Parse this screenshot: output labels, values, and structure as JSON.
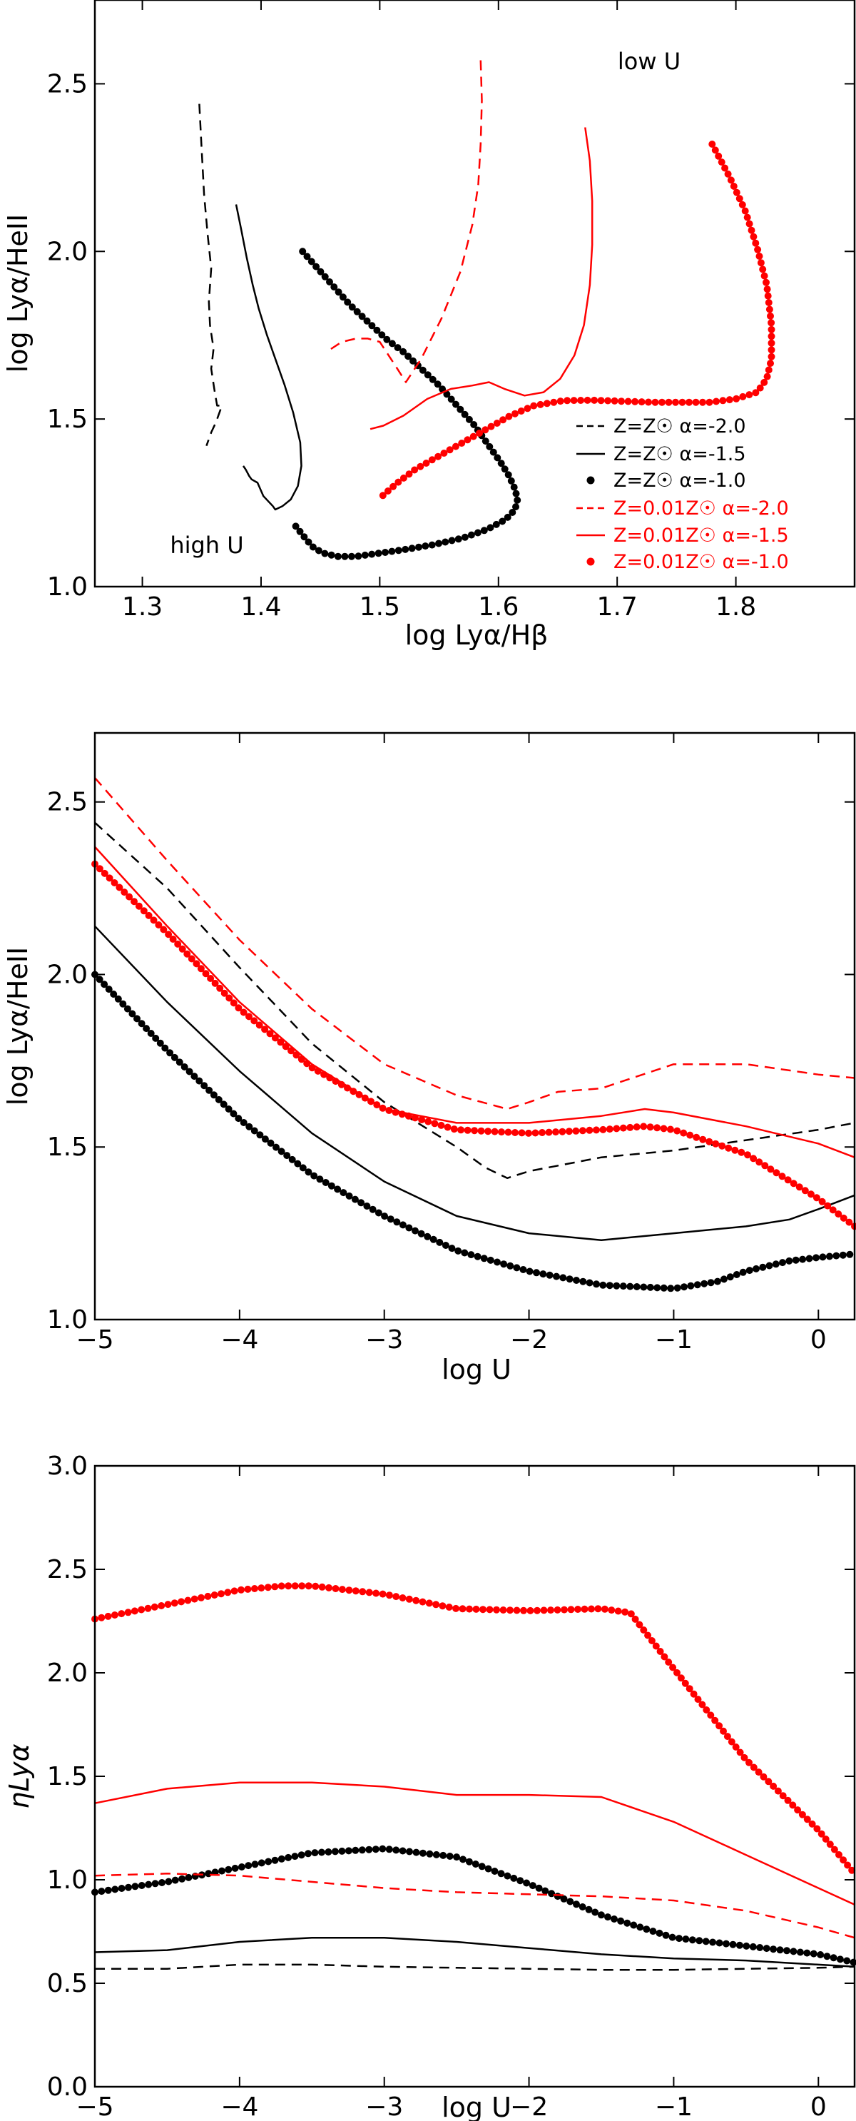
{
  "colors": {
    "black": "#000000",
    "red": "#ff0000"
  },
  "chart_data": [
    {
      "type": "line",
      "id": "top",
      "title": "",
      "xlabel": "log Lyα/Hβ",
      "ylabel": "log Lyα/HeII",
      "xlim": [
        1.26,
        1.9
      ],
      "ylim": [
        1.0,
        2.75
      ],
      "xticks": [
        1.3,
        1.4,
        1.5,
        1.6,
        1.7,
        1.8
      ],
      "yticks": [
        1.0,
        1.5,
        2.0,
        2.5
      ],
      "xtick_labels": [
        "1.3",
        "1.4",
        "1.5",
        "1.6",
        "1.7",
        "1.8"
      ],
      "ytick_labels": [
        "1.0",
        "1.5",
        "2.0",
        "2.5"
      ],
      "annotations": [
        {
          "text": "low U",
          "x": 1.725,
          "y": 2.53
        },
        {
          "text": "high U",
          "x": 1.325,
          "y": 1.11
        }
      ],
      "legend": {
        "position": "bottom-right",
        "entries": [
          {
            "label": "Z=Z☉ α=-2.0",
            "series": 0
          },
          {
            "label": "Z=Z☉ α=-1.5",
            "series": 1
          },
          {
            "label": "Z=Z☉ α=-1.0",
            "series": 2
          },
          {
            "label": "Z=0.01Z☉ α=-2.0",
            "series": 3
          },
          {
            "label": "Z=0.01Z☉ α=-1.5",
            "series": 4
          },
          {
            "label": "Z=0.01Z☉ α=-1.0",
            "series": 5
          }
        ]
      },
      "series": [
        {
          "name": "Z=Z☉ α=-2.0",
          "color": "#000000",
          "style": "dashed",
          "x": [
            1.348,
            1.35,
            1.352,
            1.355,
            1.358,
            1.356,
            1.357,
            1.36,
            1.358,
            1.361,
            1.363,
            1.367,
            1.362,
            1.358,
            1.354
          ],
          "y": [
            2.44,
            2.3,
            2.17,
            2.05,
            1.95,
            1.85,
            1.78,
            1.71,
            1.65,
            1.58,
            1.54,
            1.54,
            1.49,
            1.46,
            1.42
          ]
        },
        {
          "name": "Z=Z☉ α=-1.5",
          "color": "#000000",
          "style": "solid",
          "x": [
            1.379,
            1.383,
            1.388,
            1.393,
            1.398,
            1.405,
            1.412,
            1.42,
            1.427,
            1.433,
            1.434,
            1.431,
            1.425,
            1.418,
            1.412,
            1.41,
            1.402,
            1.397,
            1.392,
            1.39,
            1.387,
            1.385
          ],
          "y": [
            2.14,
            2.07,
            1.98,
            1.9,
            1.83,
            1.75,
            1.68,
            1.6,
            1.52,
            1.43,
            1.36,
            1.3,
            1.26,
            1.24,
            1.23,
            1.24,
            1.27,
            1.31,
            1.32,
            1.33,
            1.35,
            1.36
          ]
        },
        {
          "name": "Z=Z☉ α=-1.0",
          "color": "#000000",
          "style": "dotted",
          "x": [
            1.435,
            1.445,
            1.46,
            1.475,
            1.49,
            1.505,
            1.52,
            1.535,
            1.55,
            1.565,
            1.58,
            1.592,
            1.602,
            1.609,
            1.614,
            1.616,
            1.614,
            1.606,
            1.59,
            1.57,
            1.545,
            1.52,
            1.5,
            1.48,
            1.465,
            1.452,
            1.443,
            1.436,
            1.427
          ],
          "y": [
            2.0,
            1.96,
            1.9,
            1.84,
            1.79,
            1.74,
            1.7,
            1.65,
            1.6,
            1.54,
            1.48,
            1.42,
            1.37,
            1.33,
            1.29,
            1.26,
            1.23,
            1.2,
            1.17,
            1.145,
            1.125,
            1.11,
            1.1,
            1.09,
            1.09,
            1.1,
            1.12,
            1.15,
            1.19
          ]
        },
        {
          "name": "Z=0.01Z☉ α=-2.0",
          "color": "#ff0000",
          "style": "dashed",
          "x": [
            1.585,
            1.586,
            1.585,
            1.583,
            1.578,
            1.568,
            1.552,
            1.535,
            1.522,
            1.513,
            1.5,
            1.49,
            1.48,
            1.468,
            1.455
          ],
          "y": [
            2.57,
            2.45,
            2.32,
            2.2,
            2.08,
            1.94,
            1.8,
            1.68,
            1.61,
            1.66,
            1.73,
            1.74,
            1.74,
            1.73,
            1.7
          ]
        },
        {
          "name": "Z=0.01Z☉ α=-1.5",
          "color": "#ff0000",
          "style": "solid",
          "x": [
            1.673,
            1.677,
            1.679,
            1.679,
            1.677,
            1.672,
            1.664,
            1.652,
            1.638,
            1.622,
            1.605,
            1.592,
            1.578,
            1.56,
            1.54,
            1.52,
            1.503,
            1.492
          ],
          "y": [
            2.37,
            2.27,
            2.15,
            2.02,
            1.9,
            1.78,
            1.69,
            1.62,
            1.58,
            1.57,
            1.59,
            1.61,
            1.6,
            1.59,
            1.56,
            1.51,
            1.48,
            1.47
          ]
        },
        {
          "name": "Z=0.01Z☉ α=-1.0",
          "color": "#ff0000",
          "style": "dotted",
          "x": [
            1.78,
            1.795,
            1.808,
            1.818,
            1.826,
            1.83,
            1.83,
            1.826,
            1.818,
            1.8,
            1.778,
            1.755,
            1.73,
            1.705,
            1.68,
            1.655,
            1.63,
            1.61,
            1.59,
            1.57,
            1.55,
            1.53,
            1.515,
            1.502
          ],
          "y": [
            2.32,
            2.22,
            2.12,
            2.01,
            1.9,
            1.78,
            1.68,
            1.62,
            1.58,
            1.56,
            1.55,
            1.55,
            1.55,
            1.553,
            1.556,
            1.555,
            1.54,
            1.51,
            1.47,
            1.43,
            1.39,
            1.35,
            1.31,
            1.27
          ]
        }
      ]
    },
    {
      "type": "line",
      "id": "middle",
      "title": "",
      "xlabel": "log U",
      "ylabel": "log Lyα/HeII",
      "xlim": [
        -5.0,
        0.25
      ],
      "ylim": [
        1.0,
        2.7
      ],
      "xticks": [
        -5,
        -4,
        -3,
        -2,
        -1,
        0
      ],
      "yticks": [
        1.0,
        1.5,
        2.0,
        2.5
      ],
      "xtick_labels": [
        "−5",
        "−4",
        "−3",
        "−2",
        "−1",
        "0"
      ],
      "ytick_labels": [
        "1.0",
        "1.5",
        "2.0",
        "2.5"
      ],
      "series": [
        {
          "name": "Z=Z☉ α=-2.0",
          "color": "#000000",
          "style": "dashed",
          "x": [
            -5.0,
            -4.5,
            -4.0,
            -3.5,
            -3.0,
            -2.5,
            -2.3,
            -2.15,
            -2.0,
            -1.5,
            -1.0,
            -0.5,
            0.0,
            0.25
          ],
          "y": [
            2.44,
            2.25,
            2.02,
            1.8,
            1.63,
            1.5,
            1.44,
            1.41,
            1.43,
            1.47,
            1.49,
            1.52,
            1.55,
            1.57
          ]
        },
        {
          "name": "Z=Z☉ α=-1.5",
          "color": "#000000",
          "style": "solid",
          "x": [
            -5.0,
            -4.5,
            -4.0,
            -3.5,
            -3.0,
            -2.5,
            -2.0,
            -1.5,
            -1.0,
            -0.5,
            -0.2,
            0.0,
            0.25
          ],
          "y": [
            2.14,
            1.92,
            1.72,
            1.54,
            1.4,
            1.3,
            1.25,
            1.23,
            1.25,
            1.27,
            1.29,
            1.32,
            1.36
          ]
        },
        {
          "name": "Z=Z☉ α=-1.0",
          "color": "#000000",
          "style": "dotted",
          "x": [
            -5.0,
            -4.5,
            -4.0,
            -3.5,
            -3.0,
            -2.5,
            -2.0,
            -1.5,
            -1.0,
            -0.7,
            -0.5,
            -0.2,
            0.0,
            0.25
          ],
          "y": [
            2.0,
            1.78,
            1.58,
            1.42,
            1.3,
            1.2,
            1.14,
            1.1,
            1.09,
            1.11,
            1.14,
            1.17,
            1.18,
            1.19
          ]
        },
        {
          "name": "Z=0.01Z☉ α=-2.0",
          "color": "#ff0000",
          "style": "dashed",
          "x": [
            -5.0,
            -4.5,
            -4.0,
            -3.5,
            -3.0,
            -2.5,
            -2.15,
            -2.0,
            -1.8,
            -1.5,
            -1.0,
            -0.5,
            0.0,
            0.25
          ],
          "y": [
            2.57,
            2.33,
            2.1,
            1.9,
            1.74,
            1.65,
            1.61,
            1.63,
            1.66,
            1.67,
            1.74,
            1.74,
            1.71,
            1.7
          ]
        },
        {
          "name": "Z=0.01Z☉ α=-1.5",
          "color": "#ff0000",
          "style": "solid",
          "x": [
            -5.0,
            -4.5,
            -4.0,
            -3.5,
            -3.0,
            -2.5,
            -2.0,
            -1.5,
            -1.2,
            -1.0,
            -0.5,
            0.0,
            0.25
          ],
          "y": [
            2.37,
            2.14,
            1.92,
            1.74,
            1.61,
            1.57,
            1.57,
            1.59,
            1.61,
            1.6,
            1.56,
            1.51,
            1.47
          ]
        },
        {
          "name": "Z=0.01Z☉ α=-1.0",
          "color": "#ff0000",
          "style": "dotted",
          "x": [
            -5.0,
            -4.5,
            -4.0,
            -3.5,
            -3.0,
            -2.5,
            -2.0,
            -1.5,
            -1.2,
            -1.0,
            -0.5,
            0.0,
            0.25
          ],
          "y": [
            2.32,
            2.12,
            1.9,
            1.73,
            1.61,
            1.55,
            1.54,
            1.55,
            1.56,
            1.55,
            1.48,
            1.35,
            1.27
          ]
        }
      ]
    },
    {
      "type": "line",
      "id": "bottom",
      "title": "",
      "xlabel": "log U",
      "ylabel": "ηLyα",
      "xlim": [
        -5.0,
        0.25
      ],
      "ylim": [
        0.0,
        3.0
      ],
      "xticks": [
        -5,
        -4,
        -3,
        -2,
        -1,
        0
      ],
      "yticks": [
        0.0,
        0.5,
        1.0,
        1.5,
        2.0,
        2.5,
        3.0
      ],
      "xtick_labels": [
        "−5",
        "−4",
        "−3",
        "−2",
        "−1",
        "0"
      ],
      "ytick_labels": [
        "0.0",
        "0.5",
        "1.0",
        "1.5",
        "2.0",
        "2.5",
        "3.0"
      ],
      "series": [
        {
          "name": "Z=Z☉ α=-2.0",
          "color": "#000000",
          "style": "dashed",
          "x": [
            -5.0,
            -4.5,
            -4.0,
            -3.5,
            -3.0,
            -2.5,
            -2.0,
            -1.5,
            -1.0,
            -0.5,
            0.0,
            0.25
          ],
          "y": [
            0.57,
            0.57,
            0.59,
            0.59,
            0.58,
            0.575,
            0.57,
            0.565,
            0.565,
            0.57,
            0.575,
            0.58
          ]
        },
        {
          "name": "Z=Z☉ α=-1.5",
          "color": "#000000",
          "style": "solid",
          "x": [
            -5.0,
            -4.5,
            -4.0,
            -3.5,
            -3.0,
            -2.5,
            -2.0,
            -1.5,
            -1.0,
            -0.5,
            0.0,
            0.25
          ],
          "y": [
            0.65,
            0.66,
            0.7,
            0.72,
            0.72,
            0.7,
            0.67,
            0.64,
            0.62,
            0.61,
            0.59,
            0.58
          ]
        },
        {
          "name": "Z=Z☉ α=-1.0",
          "color": "#000000",
          "style": "dotted",
          "x": [
            -5.0,
            -4.5,
            -4.0,
            -3.5,
            -3.0,
            -2.5,
            -2.0,
            -1.5,
            -1.0,
            -0.5,
            0.0,
            0.25
          ],
          "y": [
            0.94,
            0.99,
            1.06,
            1.13,
            1.15,
            1.11,
            0.98,
            0.83,
            0.72,
            0.68,
            0.64,
            0.6
          ]
        },
        {
          "name": "Z=0.01Z☉ α=-2.0",
          "color": "#ff0000",
          "style": "dashed",
          "x": [
            -5.0,
            -4.5,
            -4.0,
            -3.5,
            -3.0,
            -2.5,
            -2.0,
            -1.5,
            -1.0,
            -0.5,
            0.0,
            0.25
          ],
          "y": [
            1.02,
            1.03,
            1.02,
            0.99,
            0.96,
            0.94,
            0.93,
            0.92,
            0.9,
            0.85,
            0.77,
            0.72
          ]
        },
        {
          "name": "Z=0.01Z☉ α=-1.5",
          "color": "#ff0000",
          "style": "solid",
          "x": [
            -5.0,
            -4.5,
            -4.0,
            -3.5,
            -3.0,
            -2.5,
            -2.0,
            -1.5,
            -1.0,
            -0.5,
            0.0,
            0.25
          ],
          "y": [
            1.37,
            1.44,
            1.47,
            1.47,
            1.45,
            1.41,
            1.41,
            1.4,
            1.28,
            1.12,
            0.96,
            0.88
          ]
        },
        {
          "name": "Z=0.01Z☉ α=-1.0",
          "color": "#ff0000",
          "style": "dotted",
          "x": [
            -5.0,
            -4.5,
            -4.0,
            -3.7,
            -3.5,
            -3.0,
            -2.5,
            -2.0,
            -1.5,
            -1.3,
            -1.0,
            -0.5,
            0.0,
            0.25
          ],
          "y": [
            2.26,
            2.33,
            2.4,
            2.42,
            2.42,
            2.38,
            2.31,
            2.3,
            2.31,
            2.29,
            2.02,
            1.58,
            1.24,
            1.03
          ]
        }
      ]
    }
  ]
}
